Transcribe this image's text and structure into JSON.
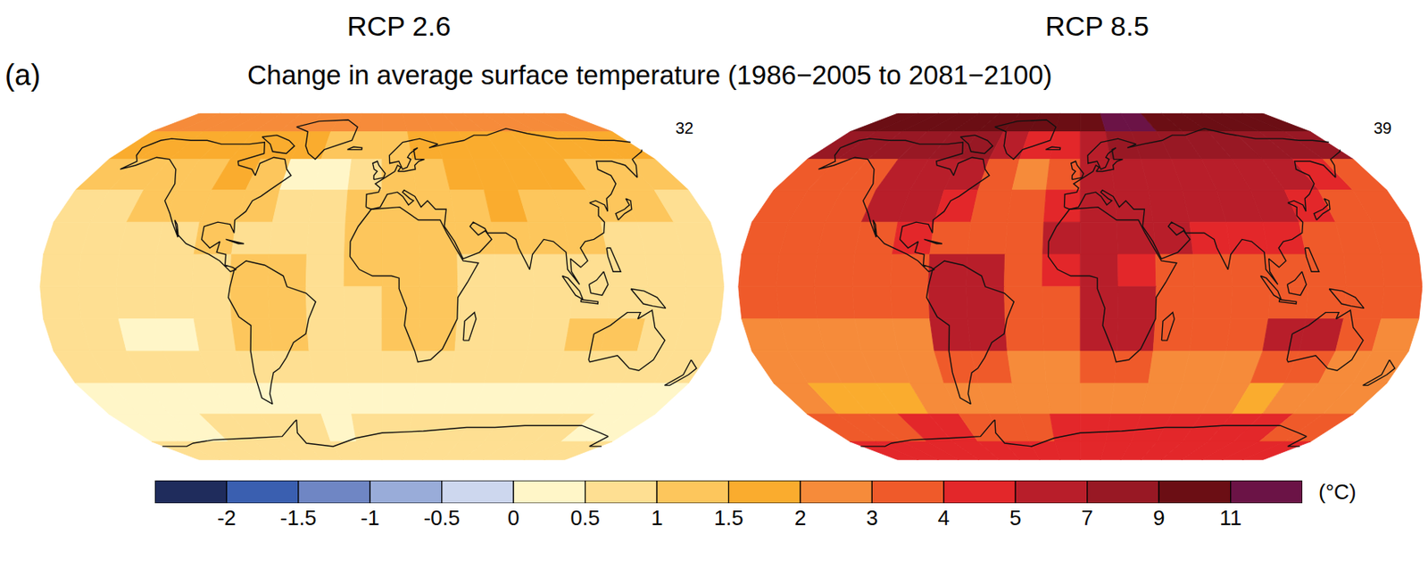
{
  "title": "Change in average surface temperature (1986−2005 to 2081−2100)",
  "panel_label": "(a)",
  "colorbar": {
    "ticks": [
      -2,
      -1.5,
      -1,
      -0.5,
      0,
      0.5,
      1,
      1.5,
      2,
      3,
      4,
      5,
      7,
      9,
      11
    ],
    "colors": [
      "#1f2c5c",
      "#3a5fb0",
      "#6f86c4",
      "#99acd9",
      "#cdd7ee",
      "#fff6c8",
      "#fedf92",
      "#fdc65c",
      "#faac2e",
      "#f68b3a",
      "#ef5a2a",
      "#e3272a",
      "#b81e2a",
      "#981824",
      "#6b0e14",
      "#6b1346"
    ],
    "unit_label": "(°C)"
  },
  "chart_data": [
    {
      "type": "map",
      "title": "RCP 2.6",
      "model_count": 32,
      "lat": [
        82.5,
        67.5,
        52.5,
        37.5,
        22.5,
        7.5,
        -7.5,
        -22.5,
        -37.5,
        -52.5,
        -67.5,
        -82.5
      ],
      "lon": [
        -170,
        -150,
        -130,
        -110,
        -90,
        -70,
        -50,
        -30,
        -10,
        10,
        30,
        50,
        70,
        90,
        110,
        130,
        150,
        170
      ],
      "values": [
        [
          2.5,
          2.5,
          2.6,
          2.6,
          2.5,
          2.4,
          2.2,
          2.2,
          2.4,
          2.6,
          2.7,
          2.8,
          2.6,
          2.5,
          2.5,
          2.6,
          2.6,
          2.5
        ],
        [
          1.8,
          1.8,
          1.7,
          1.8,
          1.8,
          1.7,
          1.6,
          1.2,
          1.1,
          1.4,
          1.7,
          1.8,
          1.8,
          1.8,
          1.8,
          1.8,
          1.8,
          1.8
        ],
        [
          1.0,
          1.0,
          1.1,
          1.4,
          1.5,
          1.3,
          0.4,
          0.3,
          0.8,
          1.2,
          1.4,
          1.5,
          1.6,
          1.6,
          1.5,
          1.3,
          1.1,
          1.0
        ],
        [
          0.9,
          0.9,
          1.0,
          1.3,
          1.3,
          1.0,
          0.8,
          0.8,
          1.1,
          1.3,
          1.4,
          1.4,
          1.5,
          1.4,
          1.3,
          1.1,
          1.0,
          0.9
        ],
        [
          0.8,
          0.8,
          0.8,
          0.9,
          1.1,
          0.8,
          0.8,
          0.8,
          1.2,
          1.3,
          1.3,
          1.3,
          1.1,
          1.0,
          1.1,
          0.9,
          0.8,
          0.8
        ],
        [
          0.8,
          0.8,
          0.8,
          0.8,
          0.8,
          1.1,
          1.0,
          0.8,
          1.1,
          1.1,
          1.0,
          0.8,
          0.8,
          0.8,
          0.9,
          0.8,
          0.8,
          0.8
        ],
        [
          0.8,
          0.8,
          0.8,
          0.8,
          0.8,
          1.2,
          1.2,
          0.8,
          0.8,
          1.1,
          1.1,
          0.8,
          0.8,
          0.8,
          0.8,
          0.8,
          0.8,
          0.8
        ],
        [
          0.7,
          0.6,
          0.45,
          0.45,
          0.7,
          1.1,
          1.1,
          0.7,
          0.7,
          1.2,
          1.1,
          0.8,
          0.7,
          0.7,
          1.2,
          1.2,
          0.7,
          0.7
        ],
        [
          0.6,
          0.6,
          0.5,
          0.5,
          0.6,
          0.9,
          0.7,
          0.6,
          0.6,
          0.7,
          0.7,
          0.6,
          0.6,
          0.6,
          0.7,
          0.8,
          0.6,
          0.6
        ],
        [
          0.4,
          0.3,
          0.3,
          0.3,
          0.4,
          0.4,
          0.3,
          0.4,
          0.4,
          0.3,
          0.3,
          0.4,
          0.4,
          0.4,
          0.4,
          0.3,
          0.4,
          0.4
        ],
        [
          0.3,
          0.3,
          0.4,
          0.6,
          0.7,
          0.7,
          0.5,
          0.3,
          0.6,
          0.7,
          0.7,
          0.7,
          0.7,
          0.7,
          0.7,
          0.6,
          0.4,
          0.3
        ],
        [
          0.8,
          0.8,
          0.8,
          0.8,
          0.8,
          0.8,
          0.8,
          0.8,
          0.8,
          0.8,
          0.8,
          0.8,
          0.8,
          0.8,
          0.8,
          0.8,
          0.8,
          0.8
        ]
      ]
    },
    {
      "type": "map",
      "title": "RCP 8.5",
      "model_count": 39,
      "lat": [
        82.5,
        67.5,
        52.5,
        37.5,
        22.5,
        7.5,
        -7.5,
        -22.5,
        -37.5,
        -52.5,
        -67.5,
        -82.5
      ],
      "lon": [
        -170,
        -150,
        -130,
        -110,
        -90,
        -70,
        -50,
        -30,
        -10,
        10,
        30,
        50,
        70,
        90,
        110,
        130,
        150,
        170
      ],
      "values": [
        [
          10,
          10,
          10,
          9.8,
          9.8,
          9.5,
          9,
          9,
          9.5,
          10,
          11.5,
          11.5,
          10.5,
          10,
          10,
          10,
          10,
          10
        ],
        [
          8,
          7.5,
          7,
          7.5,
          8,
          7,
          6,
          4.5,
          4,
          5.5,
          7,
          8,
          7.5,
          7.5,
          7.5,
          7.5,
          7.5,
          8
        ],
        [
          3.8,
          3.5,
          3.8,
          6,
          6.2,
          5,
          3,
          2.5,
          3.5,
          5,
          6,
          6.2,
          6.3,
          6.2,
          6,
          5,
          4,
          3.8
        ],
        [
          3.5,
          3.5,
          3.6,
          5.5,
          5.6,
          4,
          3.5,
          3.4,
          4.8,
          5.2,
          6,
          6.2,
          6,
          5.8,
          5.5,
          4.5,
          3.8,
          3.5
        ],
        [
          3.2,
          3.1,
          3,
          3.3,
          4.5,
          3.3,
          3.2,
          3.2,
          5.5,
          5.6,
          5.5,
          5.5,
          4.5,
          4.2,
          4.5,
          3.6,
          3.3,
          3.2
        ],
        [
          3.2,
          3.2,
          3.2,
          3.2,
          3.3,
          5.2,
          5.2,
          3.2,
          4.8,
          5.2,
          4.5,
          3.3,
          3.3,
          3.3,
          3.6,
          3.4,
          3.2,
          3.2
        ],
        [
          3,
          3,
          3,
          3,
          3,
          5.5,
          5.8,
          3,
          3.4,
          5.5,
          5.2,
          3.2,
          3.2,
          3.2,
          3.6,
          3.4,
          3.1,
          3
        ],
        [
          2.8,
          2.7,
          2.5,
          2.6,
          2.9,
          5,
          5.2,
          3,
          3,
          5.6,
          5.2,
          3,
          3,
          3,
          5.2,
          5.3,
          3,
          2.8
        ],
        [
          2.6,
          2.5,
          2.4,
          2.5,
          2.7,
          3.8,
          3.2,
          2.7,
          2.8,
          3.2,
          3,
          2.8,
          2.7,
          2.8,
          3.2,
          3.3,
          2.7,
          2.6
        ],
        [
          2.2,
          1.9,
          1.8,
          1.8,
          2,
          2.3,
          2.2,
          2.4,
          2.5,
          2.3,
          2.3,
          2.4,
          2.3,
          2.2,
          1.9,
          2,
          2.2,
          2.2
        ],
        [
          3.2,
          3.5,
          3.8,
          4,
          4,
          3.8,
          3.4,
          3.5,
          4,
          4.2,
          4,
          4.2,
          4.2,
          4.2,
          4.2,
          4,
          3.6,
          3.3
        ],
        [
          4.5,
          4.5,
          4.5,
          4.5,
          4.5,
          4.6,
          4.6,
          4.6,
          4.6,
          4.6,
          4.6,
          4.6,
          4.6,
          4.6,
          4.6,
          4.6,
          4.5,
          4.5
        ]
      ]
    }
  ]
}
